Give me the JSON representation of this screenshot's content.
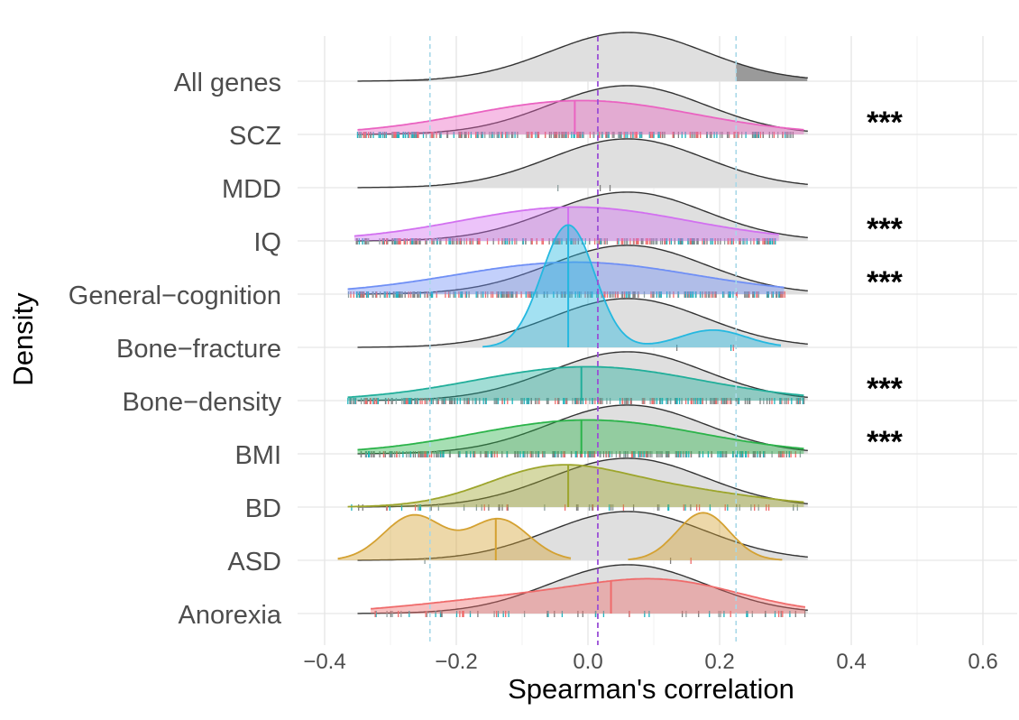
{
  "chart_data": {
    "type": "ridgeline",
    "xlabel": "Spearman's correlation",
    "ylabel": "Density",
    "xlim": [
      -0.44,
      0.64
    ],
    "x_ticks": [
      -0.4,
      -0.2,
      0.0,
      0.2,
      0.4,
      0.6
    ],
    "x_tick_labels": [
      "−0.4",
      "−0.2",
      "0.0",
      "0.2",
      "0.4",
      "0.6"
    ],
    "reference_lines": {
      "quantiles_dashed": [
        -0.24,
        0.225
      ],
      "median_dashed": 0.015
    },
    "background_distribution": {
      "name": "All genes",
      "mean": 0.06,
      "sd": 0.118,
      "range": [
        -0.35,
        0.335
      ],
      "median": 0.015,
      "tail_cutoffs": [
        -0.24,
        0.225
      ],
      "color": "#d9d9d9"
    },
    "categories": [
      "All genes",
      "SCZ",
      "MDD",
      "IQ",
      "General−cognition",
      "Bone−fracture",
      "Bone−density",
      "BMI",
      "BD",
      "ASD",
      "Anorexia"
    ],
    "significance": [
      "",
      "***",
      "",
      "***",
      "***",
      "",
      "***",
      "***",
      "",
      "",
      ""
    ],
    "series": [
      {
        "name": "SCZ",
        "color": "#ea63c1",
        "range": [
          -0.35,
          0.33
        ],
        "median": -0.02,
        "components": [
          {
            "w": 1.0,
            "mean": -0.01,
            "sd": 0.17
          }
        ],
        "rug": "dense"
      },
      {
        "name": "MDD",
        "color": "#b0b0b0",
        "range": null,
        "median": null,
        "components": [],
        "rug": "sparse"
      },
      {
        "name": "IQ",
        "color": "#d270f0",
        "range": [
          -0.355,
          0.29
        ],
        "median": -0.03,
        "components": [
          {
            "w": 1.0,
            "mean": -0.02,
            "sd": 0.17
          }
        ],
        "rug": "dense"
      },
      {
        "name": "General−cognition",
        "color": "#6f8ff5",
        "range": [
          -0.365,
          0.3
        ],
        "median": -0.03,
        "components": [
          {
            "w": 1.0,
            "mean": -0.02,
            "sd": 0.18
          }
        ],
        "rug": "dense"
      },
      {
        "name": "Bone−fracture",
        "color": "#24b8e0",
        "range": [
          -0.16,
          0.295
        ],
        "median": -0.03,
        "components": [
          {
            "w": 0.85,
            "mean": -0.03,
            "sd": 0.04
          },
          {
            "w": 0.15,
            "mean": 0.19,
            "sd": 0.05
          }
        ],
        "rug": "sparse"
      },
      {
        "name": "Bone−density",
        "color": "#21ae9a",
        "range": [
          -0.365,
          0.33
        ],
        "median": -0.01,
        "components": [
          {
            "w": 1.0,
            "mean": 0.0,
            "sd": 0.17
          }
        ],
        "rug": "dense"
      },
      {
        "name": "BMI",
        "color": "#2bb34a",
        "range": [
          -0.35,
          0.33
        ],
        "median": -0.01,
        "components": [
          {
            "w": 1.0,
            "mean": 0.0,
            "sd": 0.17
          }
        ],
        "rug": "dense"
      },
      {
        "name": "BD",
        "color": "#9da52c",
        "range": [
          -0.365,
          0.33
        ],
        "median": -0.03,
        "components": [
          {
            "w": 0.55,
            "mean": -0.06,
            "sd": 0.1
          },
          {
            "w": 0.45,
            "mean": 0.1,
            "sd": 0.14
          }
        ],
        "rug": "medium"
      },
      {
        "name": "ASD",
        "color": "#d4a131",
        "range": [
          -0.38,
          0.295
        ],
        "median": -0.14,
        "components": [
          {
            "w": 0.35,
            "mean": -0.265,
            "sd": 0.045
          },
          {
            "w": 0.32,
            "mean": -0.135,
            "sd": 0.045
          },
          {
            "w": 0.33,
            "mean": 0.175,
            "sd": 0.04
          }
        ],
        "gap": [
          -0.025,
          0.06
        ],
        "rug": "sparse"
      },
      {
        "name": "Anorexia",
        "color": "#ef6b6b",
        "range": [
          -0.33,
          0.33
        ],
        "median": 0.035,
        "components": [
          {
            "w": 0.4,
            "mean": -0.1,
            "sd": 0.15
          },
          {
            "w": 0.6,
            "mean": 0.12,
            "sd": 0.12
          }
        ],
        "rug": "medium"
      }
    ]
  }
}
